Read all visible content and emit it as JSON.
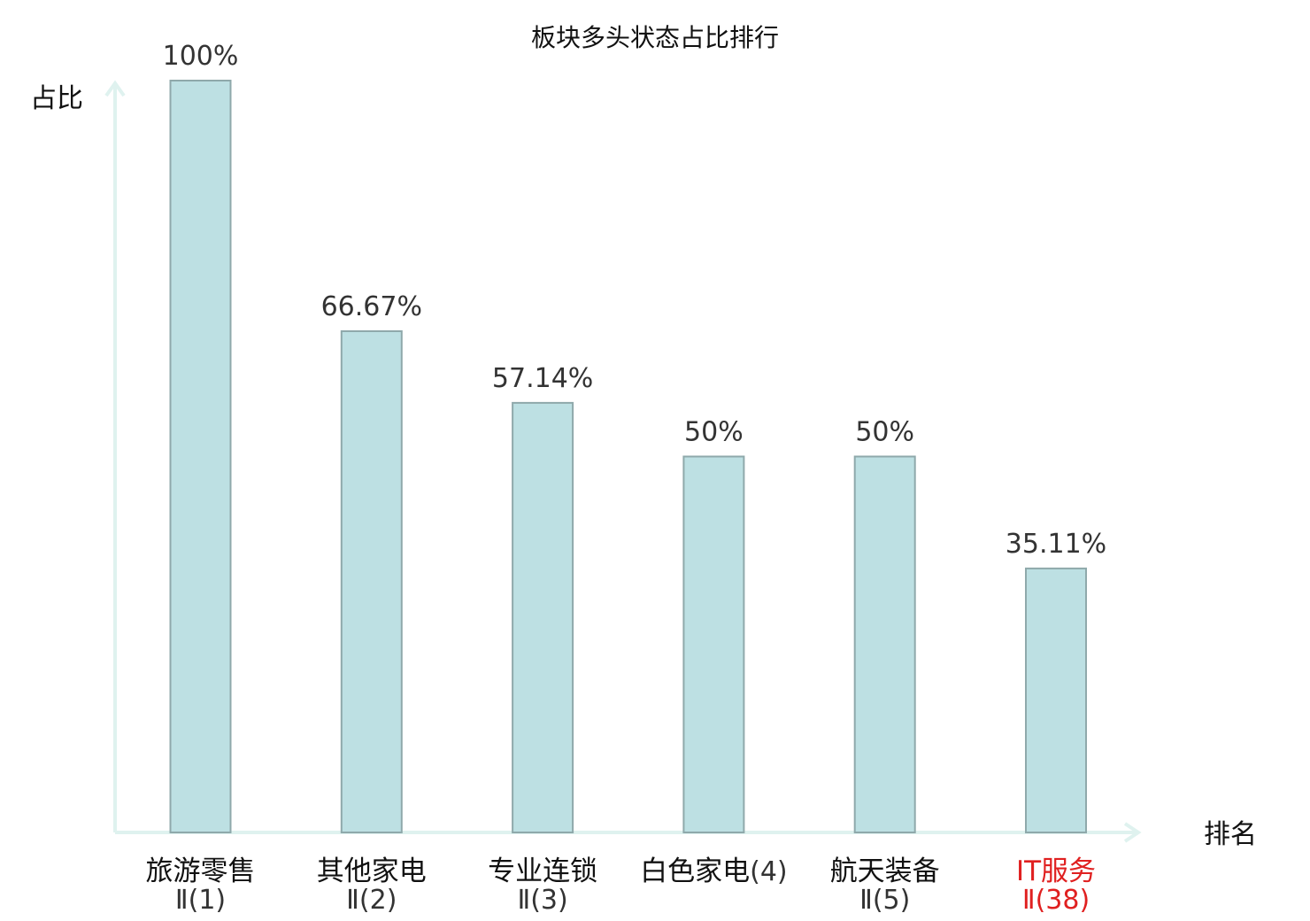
{
  "chart_data": {
    "type": "bar",
    "title": "板块多头状态占比排行",
    "ylabel": "占比",
    "xlabel": "排名",
    "ylim": [
      0,
      100
    ],
    "grid": false,
    "colors": {
      "bar_fill": "#bde0e3",
      "bar_stroke": "#8fa9ab",
      "axis": "#dff2ef",
      "highlight": "#e02020"
    },
    "categories": [
      {
        "name": "旅游零售",
        "sub": "Ⅱ(1)",
        "label": "100%",
        "value": 100,
        "highlight": false
      },
      {
        "name": "其他家电",
        "sub": "Ⅱ(2)",
        "label": "66.67%",
        "value": 66.67,
        "highlight": false
      },
      {
        "name": "专业连锁",
        "sub": "Ⅱ(3)",
        "label": "57.14%",
        "value": 57.14,
        "highlight": false
      },
      {
        "name": "白色家电",
        "paren": "(4)",
        "label": "50%",
        "value": 50,
        "highlight": false
      },
      {
        "name": "航天装备",
        "sub": "Ⅱ(5)",
        "label": "50%",
        "value": 50,
        "highlight": false
      },
      {
        "name": "IT服务",
        "sub": "Ⅱ(38)",
        "label": "35.11%",
        "value": 35.11,
        "highlight": true
      }
    ]
  }
}
